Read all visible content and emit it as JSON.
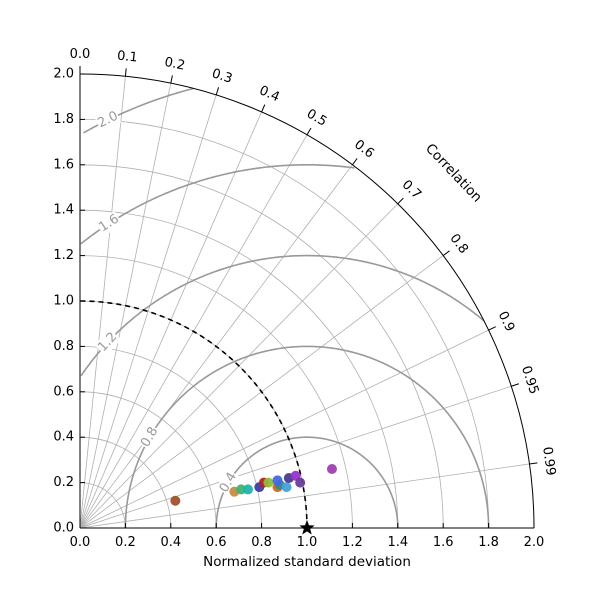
{
  "chart_data": {
    "type": "scatter",
    "subtype": "taylor-diagram",
    "xlabel": "Normalized standard deviation",
    "corr_label": "Correlation",
    "std_range": [
      0,
      2.0
    ],
    "std_ticks": [
      "0.0",
      "0.2",
      "0.4",
      "0.6",
      "0.8",
      "1.0",
      "1.2",
      "1.4",
      "1.6",
      "1.8",
      "2.0"
    ],
    "correlation_ticks": [
      "0.0",
      "0.1",
      "0.2",
      "0.3",
      "0.4",
      "0.5",
      "0.6",
      "0.7",
      "0.8",
      "0.9",
      "0.95",
      "0.99"
    ],
    "rms_contours": [
      0.4,
      0.8,
      1.2,
      1.6,
      2.0
    ],
    "rms_labels": [
      "0.4",
      "0.8",
      "1.2",
      "1.6",
      "2.0"
    ],
    "reference": {
      "std": 1.0,
      "correlation": 1.0,
      "marker": "star"
    },
    "grid": true,
    "points": [
      {
        "x": 0.42,
        "y": 0.12,
        "color": "#a0522d"
      },
      {
        "x": 0.68,
        "y": 0.16,
        "color": "#c58c3e"
      },
      {
        "x": 0.71,
        "y": 0.17,
        "color": "#3cb371"
      },
      {
        "x": 0.74,
        "y": 0.17,
        "color": "#20b2aa"
      },
      {
        "x": 0.79,
        "y": 0.18,
        "color": "#3d3da6"
      },
      {
        "x": 0.81,
        "y": 0.2,
        "color": "#b22222"
      },
      {
        "x": 0.83,
        "y": 0.2,
        "color": "#8fbc3f"
      },
      {
        "x": 0.87,
        "y": 0.18,
        "color": "#d2691e"
      },
      {
        "x": 0.88,
        "y": 0.19,
        "color": "#2e8b8b"
      },
      {
        "x": 0.87,
        "y": 0.21,
        "color": "#4169e1"
      },
      {
        "x": 0.91,
        "y": 0.18,
        "color": "#48a0d8"
      },
      {
        "x": 0.92,
        "y": 0.22,
        "color": "#483d8b"
      },
      {
        "x": 0.95,
        "y": 0.23,
        "color": "#9932cc"
      },
      {
        "x": 0.97,
        "y": 0.2,
        "color": "#6a3d9a"
      },
      {
        "x": 1.11,
        "y": 0.26,
        "color": "#a040b0"
      }
    ]
  }
}
